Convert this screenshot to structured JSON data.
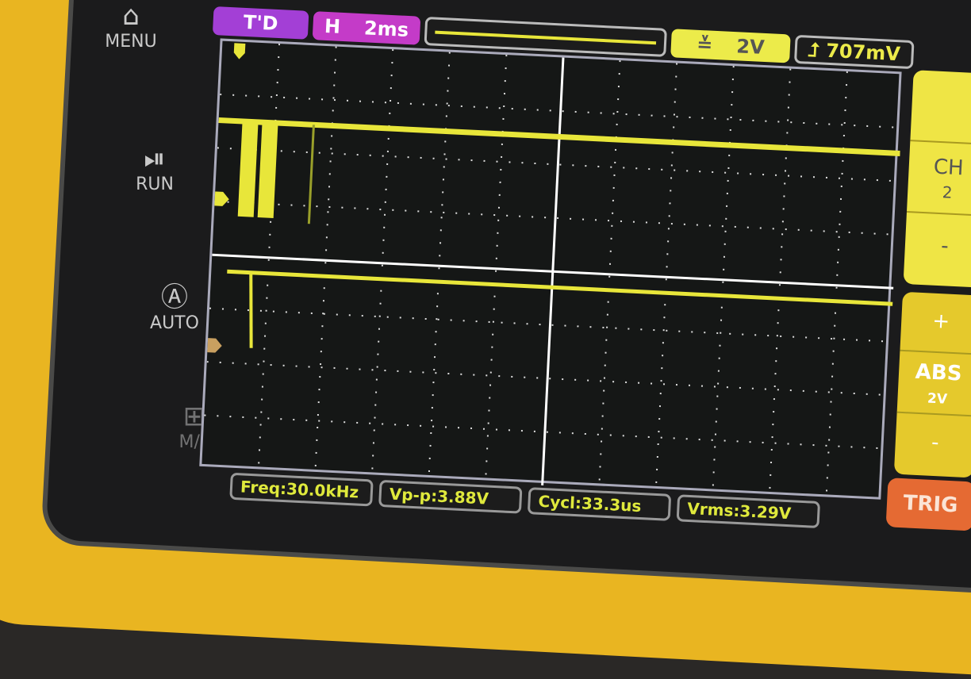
{
  "side_buttons": [
    {
      "label": "MENU",
      "icon": "home-icon"
    },
    {
      "label": "RUN",
      "icon": "play-pause-icon"
    },
    {
      "label": "AUTO",
      "icon": "auto-icon"
    },
    {
      "label": "M/F",
      "icon": "grid-icon"
    }
  ],
  "topbar": {
    "mode": "T'D",
    "h_label": "H",
    "timebase": "2ms",
    "ch_scale": "2V",
    "trigger_level": "707mV",
    "trigger_icon": "trigger-edge-icon"
  },
  "measurements": {
    "freq": "Freq:30.0kHz",
    "vpp": "Vp-p:3.88V",
    "cycle": "Cycl:33.3us",
    "vrms": "Vrms:3.29V"
  },
  "right_panel": {
    "ch_label": "CH",
    "ch_value": "2",
    "minus1": "-",
    "plus": "+",
    "coupling": "ABS",
    "scale": "2V",
    "minus2": "-",
    "trig": "TRIG"
  },
  "colors": {
    "trace": "#e8e63a",
    "case": "#e9b521",
    "trig_button": "#e56a33",
    "mode_pill": "#a33fd6"
  }
}
